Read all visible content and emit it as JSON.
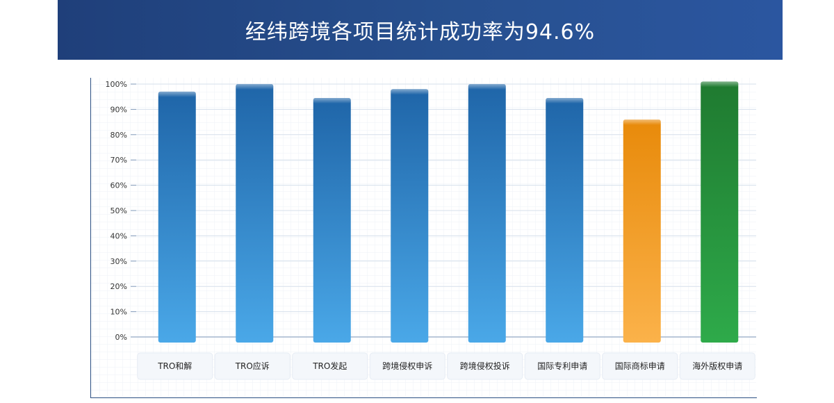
{
  "header": {
    "title": "经纬跨境各项目统计成功率为94.6%"
  },
  "colors": {
    "header_bg": "#27508f",
    "blue_bar": "#2f7fc8",
    "orange_bar": "#f39a1a",
    "green_bar": "#2a9a3f",
    "axis": "#2b4f82",
    "grid": "#e4ebf3"
  },
  "chart_data": {
    "type": "bar",
    "categories": [
      "TRO和解",
      "TRO应诉",
      "TRO发起",
      "跨境侵权申诉",
      "跨境侵权投诉",
      "国际专利申请",
      "国际商标申请",
      "海外版权申请"
    ],
    "values": [
      97,
      100,
      94.5,
      98,
      100,
      94.5,
      86,
      101
    ],
    "bar_colors": [
      "blue",
      "blue",
      "blue",
      "blue",
      "blue",
      "blue",
      "orange",
      "green"
    ],
    "ylim": [
      0,
      100
    ],
    "yticks": [
      "0%",
      "10%",
      "20%",
      "30%",
      "40%",
      "50%",
      "60%",
      "70%",
      "80%",
      "90%",
      "100%"
    ],
    "grid": true,
    "legend": "none"
  }
}
